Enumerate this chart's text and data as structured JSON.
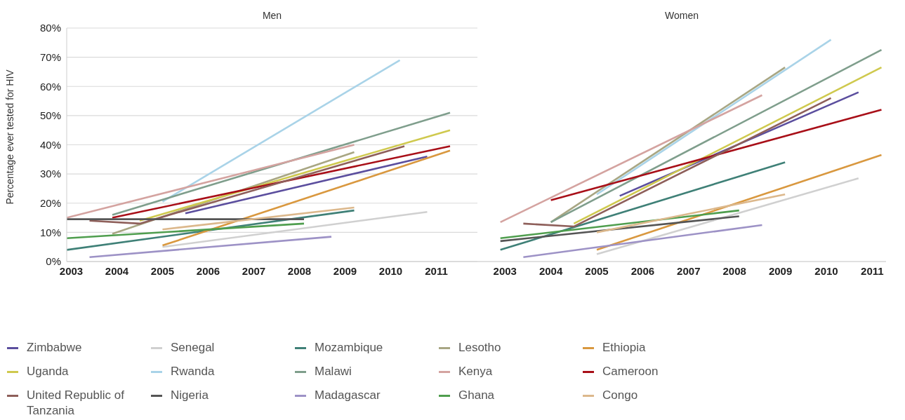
{
  "chart_data": [
    {
      "type": "line",
      "title": "Men",
      "ylabel": "Percentage ever tested for HIV",
      "xlim": [
        2002.9,
        2011.9
      ],
      "xticks": [
        2003,
        2004,
        2005,
        2006,
        2007,
        2008,
        2009,
        2010,
        2011
      ],
      "ylim": [
        0,
        80
      ],
      "yticks": [
        {
          "value": 0,
          "label": "0%"
        },
        {
          "value": 10,
          "label": "10%"
        },
        {
          "value": 20,
          "label": "20%"
        },
        {
          "value": 30,
          "label": "30%"
        },
        {
          "value": 40,
          "label": "40%"
        },
        {
          "value": 50,
          "label": "50%"
        },
        {
          "value": 60,
          "label": "60%"
        },
        {
          "value": 70,
          "label": "70%"
        },
        {
          "value": 80,
          "label": "80%"
        }
      ],
      "grid": "y",
      "legend": "bottom",
      "series": [
        {
          "name": "Zimbabwe",
          "color": "#5b4e9e",
          "x": [
            2005.5,
            2010.8
          ],
          "values": [
            16.5,
            36
          ]
        },
        {
          "name": "Senegal",
          "color": "#d0d0d0",
          "x": [
            2005,
            2010.8
          ],
          "values": [
            5,
            17
          ]
        },
        {
          "name": "Mozambique",
          "color": "#3f8077",
          "x": [
            2002.9,
            2009.2
          ],
          "values": [
            4,
            17.5
          ]
        },
        {
          "name": "Lesotho",
          "color": "#a8a683",
          "x": [
            2003.9,
            2009.2
          ],
          "values": [
            9.5,
            37.5
          ]
        },
        {
          "name": "Ethiopia",
          "color": "#d9983f",
          "x": [
            2005,
            2011.3
          ],
          "values": [
            5.5,
            38
          ]
        },
        {
          "name": "Uganda",
          "color": "#cfc94e",
          "x": [
            2004.5,
            2011.3
          ],
          "values": [
            14,
            45
          ]
        },
        {
          "name": "Rwanda",
          "color": "#a9d3e8",
          "x": [
            2005,
            2010.2
          ],
          "values": [
            20.5,
            69
          ]
        },
        {
          "name": "Malawi",
          "color": "#7f9e8c",
          "x": [
            2003.9,
            2011.3
          ],
          "values": [
            16,
            51
          ]
        },
        {
          "name": "Kenya",
          "color": "#d4a3a0",
          "x": [
            2002.9,
            2009.2
          ],
          "values": [
            15,
            40
          ]
        },
        {
          "name": "Cameroon",
          "color": "#a80f18",
          "x": [
            2003.9,
            2011.3
          ],
          "values": [
            15,
            39.5
          ]
        },
        {
          "name": "United Republic of Tanzania",
          "color": "#8e5f5a",
          "x": [
            2003.4,
            2004.5,
            2010.3
          ],
          "values": [
            14,
            13,
            39.5
          ]
        },
        {
          "name": "Nigeria",
          "color": "#555555",
          "x": [
            2002.9,
            2008.1
          ],
          "values": [
            14.5,
            14.5
          ]
        },
        {
          "name": "Madagascar",
          "color": "#9d92c6",
          "x": [
            2003.4,
            2008.7
          ],
          "values": [
            1.5,
            8.5
          ]
        },
        {
          "name": "Ghana",
          "color": "#4f9e4e",
          "x": [
            2002.9,
            2008.1
          ],
          "values": [
            8,
            13
          ]
        },
        {
          "name": "Congo",
          "color": "#dcb88c",
          "x": [
            2005,
            2009.2
          ],
          "values": [
            11,
            18.5
          ]
        }
      ]
    },
    {
      "type": "line",
      "title": "Women",
      "xlim": [
        2002.4,
        2011.3
      ],
      "xticks": [
        2003,
        2004,
        2005,
        2006,
        2007,
        2008,
        2009,
        2010,
        2011
      ],
      "ylim": [
        0,
        80
      ],
      "tick_labels": "x",
      "grid": "y",
      "series": [
        {
          "color": "#5b4e9e",
          "x": [
            2005.5,
            2010.7
          ],
          "values": [
            22.5,
            58
          ]
        },
        {
          "color": "#d0d0d0",
          "x": [
            2005,
            2010.7
          ],
          "values": [
            2.5,
            28.5
          ]
        },
        {
          "color": "#3f8077",
          "x": [
            2002.9,
            2009.1
          ],
          "values": [
            4,
            34
          ]
        },
        {
          "color": "#a8a683",
          "x": [
            2004,
            2009.1
          ],
          "values": [
            13.5,
            66.5
          ]
        },
        {
          "color": "#d9983f",
          "x": [
            2005,
            2011.2
          ],
          "values": [
            4,
            36.5
          ]
        },
        {
          "color": "#cfc94e",
          "x": [
            2004.5,
            2011.2
          ],
          "values": [
            13,
            66.5
          ]
        },
        {
          "color": "#a9d3e8",
          "x": [
            2005,
            2010.1
          ],
          "values": [
            23,
            76
          ]
        },
        {
          "color": "#7f9e8c",
          "x": [
            2004,
            2011.2
          ],
          "values": [
            13.5,
            72.5
          ]
        },
        {
          "color": "#d4a3a0",
          "x": [
            2002.9,
            2008.6
          ],
          "values": [
            13.5,
            57
          ]
        },
        {
          "color": "#a80f18",
          "x": [
            2004,
            2011.2
          ],
          "values": [
            21,
            52
          ]
        },
        {
          "color": "#8e5f5a",
          "x": [
            2003.4,
            2004.5,
            2010.1
          ],
          "values": [
            13,
            12,
            56
          ]
        },
        {
          "color": "#555555",
          "x": [
            2002.9,
            2008.1
          ],
          "values": [
            7,
            15.5
          ]
        },
        {
          "color": "#9d92c6",
          "x": [
            2003.4,
            2008.6
          ],
          "values": [
            1.5,
            12.5
          ]
        },
        {
          "color": "#4f9e4e",
          "x": [
            2002.9,
            2008.1
          ],
          "values": [
            8,
            17.5
          ]
        },
        {
          "color": "#dcb88c",
          "x": [
            2005,
            2009.1
          ],
          "values": [
            10,
            23
          ]
        }
      ]
    }
  ]
}
